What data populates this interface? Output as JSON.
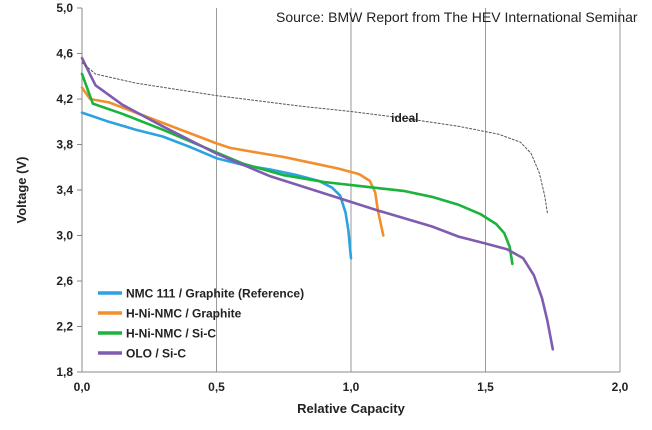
{
  "chart_data": {
    "type": "line",
    "source_note": "Source: BMW Report from The HEV International Seminar",
    "xlabel": "Relative Capacity",
    "ylabel": "Voltage (V)",
    "xlim": [
      0,
      2
    ],
    "ylim": [
      1.8,
      5.0
    ],
    "x_ticks": [
      "0,0",
      "0,5",
      "1,0",
      "1,5",
      "2,0"
    ],
    "y_ticks": [
      "1,8",
      "2,2",
      "2,6",
      "3,0",
      "3,4",
      "3,8",
      "4,2",
      "4,6",
      "5,0"
    ],
    "grid": "vertical",
    "legend_position": "lower-left",
    "series": [
      {
        "name": "NMC 111 / Graphite (Reference)",
        "color": "#2aa3e0",
        "style": "solid",
        "points": [
          [
            0.0,
            4.08
          ],
          [
            0.1,
            4.0
          ],
          [
            0.2,
            3.93
          ],
          [
            0.3,
            3.87
          ],
          [
            0.4,
            3.78
          ],
          [
            0.5,
            3.68
          ],
          [
            0.6,
            3.62
          ],
          [
            0.7,
            3.58
          ],
          [
            0.8,
            3.53
          ],
          [
            0.88,
            3.48
          ],
          [
            0.93,
            3.42
          ],
          [
            0.96,
            3.35
          ],
          [
            0.98,
            3.2
          ],
          [
            0.99,
            3.05
          ],
          [
            1.0,
            2.8
          ]
        ]
      },
      {
        "name": "H-Ni-NMC / Graphite",
        "color": "#f28e2c",
        "style": "solid",
        "points": [
          [
            0.0,
            4.3
          ],
          [
            0.03,
            4.2
          ],
          [
            0.1,
            4.17
          ],
          [
            0.2,
            4.08
          ],
          [
            0.3,
            3.99
          ],
          [
            0.4,
            3.9
          ],
          [
            0.5,
            3.81
          ],
          [
            0.55,
            3.77
          ],
          [
            0.65,
            3.73
          ],
          [
            0.75,
            3.69
          ],
          [
            0.85,
            3.64
          ],
          [
            0.95,
            3.59
          ],
          [
            1.03,
            3.54
          ],
          [
            1.07,
            3.48
          ],
          [
            1.09,
            3.38
          ],
          [
            1.1,
            3.22
          ],
          [
            1.12,
            3.0
          ]
        ]
      },
      {
        "name": "H-Ni-NMC / Si-C",
        "color": "#1ab33c",
        "style": "solid",
        "points": [
          [
            0.0,
            4.42
          ],
          [
            0.04,
            4.16
          ],
          [
            0.15,
            4.07
          ],
          [
            0.3,
            3.93
          ],
          [
            0.45,
            3.78
          ],
          [
            0.6,
            3.63
          ],
          [
            0.75,
            3.53
          ],
          [
            0.9,
            3.47
          ],
          [
            1.05,
            3.43
          ],
          [
            1.2,
            3.39
          ],
          [
            1.3,
            3.34
          ],
          [
            1.4,
            3.27
          ],
          [
            1.48,
            3.19
          ],
          [
            1.54,
            3.1
          ],
          [
            1.57,
            3.02
          ],
          [
            1.59,
            2.9
          ],
          [
            1.6,
            2.75
          ]
        ]
      },
      {
        "name": "OLO / Si-C",
        "color": "#7e5cb0",
        "style": "solid",
        "points": [
          [
            0.0,
            4.56
          ],
          [
            0.05,
            4.32
          ],
          [
            0.15,
            4.15
          ],
          [
            0.3,
            3.96
          ],
          [
            0.5,
            3.72
          ],
          [
            0.7,
            3.52
          ],
          [
            0.9,
            3.37
          ],
          [
            1.1,
            3.22
          ],
          [
            1.3,
            3.08
          ],
          [
            1.4,
            2.99
          ],
          [
            1.5,
            2.93
          ],
          [
            1.58,
            2.88
          ],
          [
            1.64,
            2.8
          ],
          [
            1.68,
            2.65
          ],
          [
            1.71,
            2.45
          ],
          [
            1.73,
            2.25
          ],
          [
            1.75,
            2.0
          ]
        ]
      },
      {
        "name": "ideal",
        "color": "#555555",
        "style": "dotted",
        "points": [
          [
            0.0,
            4.52
          ],
          [
            0.05,
            4.42
          ],
          [
            0.2,
            4.34
          ],
          [
            0.5,
            4.23
          ],
          [
            0.8,
            4.14
          ],
          [
            1.0,
            4.09
          ],
          [
            1.2,
            4.03
          ],
          [
            1.4,
            3.96
          ],
          [
            1.55,
            3.89
          ],
          [
            1.63,
            3.82
          ],
          [
            1.67,
            3.72
          ],
          [
            1.7,
            3.55
          ],
          [
            1.72,
            3.35
          ],
          [
            1.73,
            3.2
          ]
        ]
      }
    ],
    "annotations": [
      {
        "text": "ideal",
        "x": 1.2,
        "y": 4.0
      }
    ]
  }
}
